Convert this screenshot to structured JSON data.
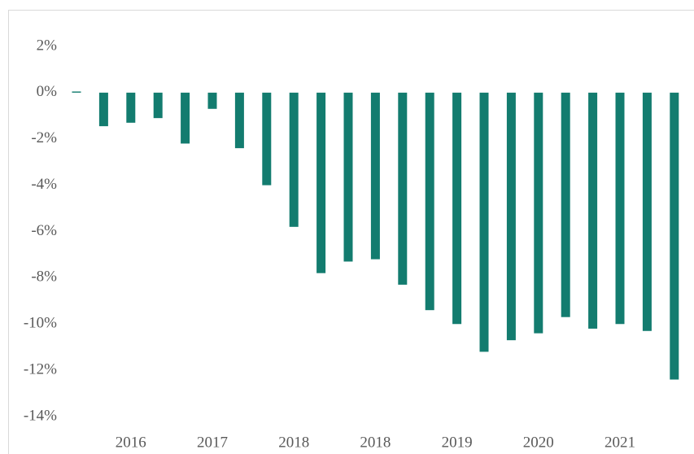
{
  "chart_data": {
    "type": "bar",
    "categories": [
      null,
      null,
      "2016",
      null,
      null,
      "2017",
      null,
      null,
      "2018",
      null,
      null,
      "2018",
      null,
      null,
      "2019",
      null,
      null,
      "2020",
      null,
      null,
      "2021",
      null,
      null
    ],
    "values": [
      0.05,
      -1.45,
      -1.3,
      -1.1,
      -2.2,
      -0.7,
      -2.4,
      -4.0,
      -5.8,
      -7.8,
      -7.3,
      -7.2,
      -8.3,
      -9.4,
      -10.0,
      -11.2,
      -10.7,
      -10.4,
      -9.7,
      -10.2,
      -10.0,
      -10.3,
      -12.4
    ],
    "color": "#137c6f",
    "ylim": [
      -14,
      2
    ],
    "yticks": [
      {
        "value": 2,
        "label": "2%"
      },
      {
        "value": 0,
        "label": "0%"
      },
      {
        "value": -2,
        "label": "-2%"
      },
      {
        "value": -4,
        "label": "-4%"
      },
      {
        "value": -6,
        "label": "-6%"
      },
      {
        "value": -8,
        "label": "-8%"
      },
      {
        "value": -10,
        "label": "-10%"
      },
      {
        "value": -12,
        "label": "-12%"
      },
      {
        "value": -14,
        "label": "-14%"
      }
    ],
    "grid": false
  }
}
